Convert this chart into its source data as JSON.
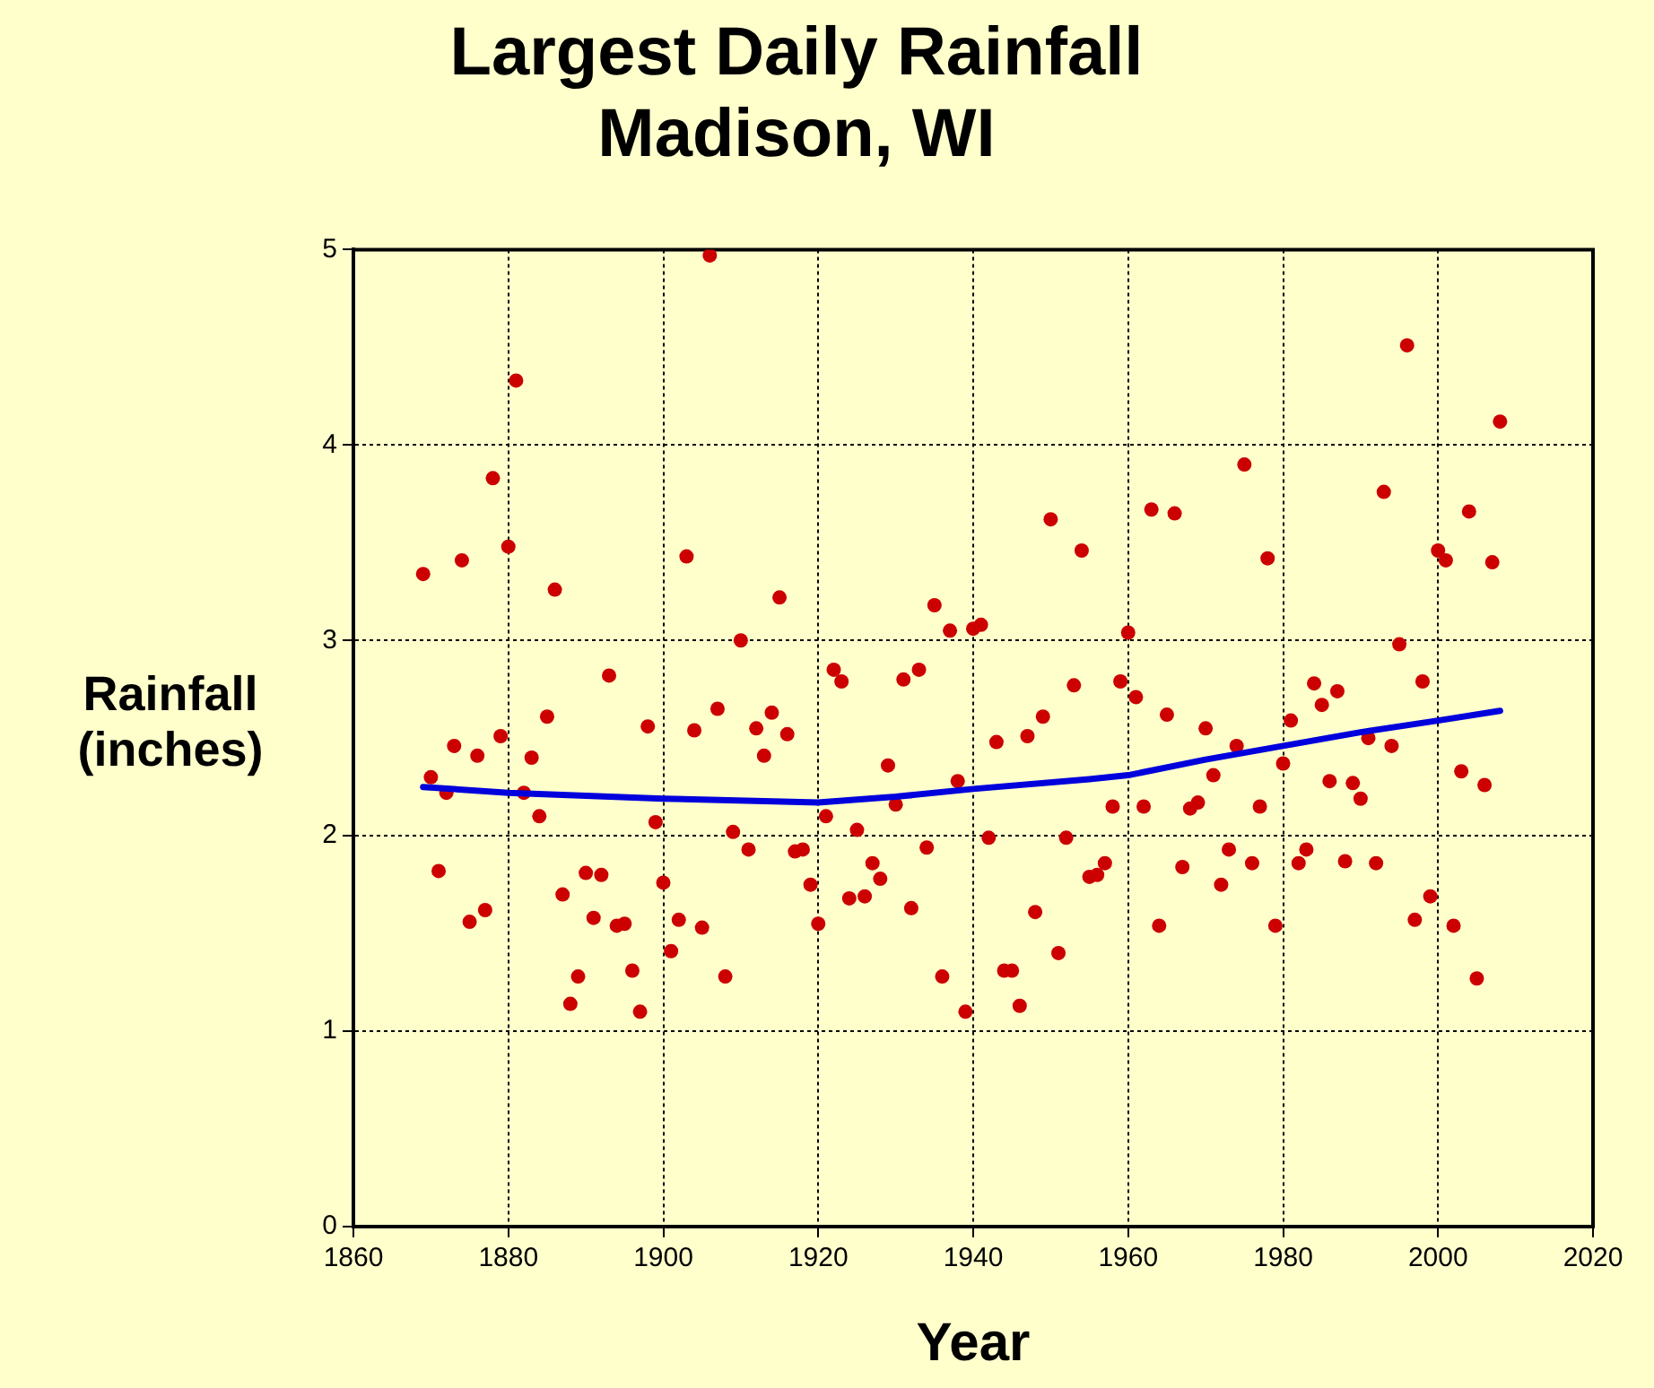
{
  "chart_data": {
    "type": "scatter",
    "title": "Largest Daily Rainfall",
    "subtitle": "Madison, WI",
    "xlabel": "Year",
    "ylabel": "Rainfall (inches)",
    "xlim": [
      1860,
      2020
    ],
    "xticks": [
      1860,
      1880,
      1900,
      1920,
      1940,
      1960,
      1980,
      2000,
      2020
    ],
    "ylim": [
      0,
      5
    ],
    "yticks": [
      0,
      1,
      2,
      3,
      4,
      5
    ],
    "grid": true,
    "legend": false,
    "marker": "circle",
    "series": [
      {
        "color": "#cc0000",
        "x": [
          1869,
          1870,
          1871,
          1872,
          1873,
          1874,
          1875,
          1876,
          1877,
          1878,
          1879,
          1880,
          1881,
          1882,
          1883,
          1884,
          1885,
          1886,
          1887,
          1888,
          1889,
          1890,
          1891,
          1892,
          1893,
          1894,
          1895,
          1896,
          1897,
          1898,
          1899,
          1900,
          1901,
          1902,
          1903,
          1904,
          1905,
          1906,
          1907,
          1908,
          1909,
          1910,
          1911,
          1912,
          1913,
          1914,
          1915,
          1916,
          1917,
          1918,
          1919,
          1920,
          1921,
          1922,
          1923,
          1924,
          1925,
          1926,
          1927,
          1928,
          1929,
          1930,
          1931,
          1932,
          1933,
          1934,
          1935,
          1936,
          1937,
          1938,
          1939,
          1940,
          1941,
          1942,
          1943,
          1944,
          1945,
          1946,
          1947,
          1948,
          1949,
          1950,
          1951,
          1952,
          1953,
          1954,
          1955,
          1956,
          1957,
          1958,
          1959,
          1960,
          1961,
          1962,
          1963,
          1964,
          1965,
          1966,
          1967,
          1968,
          1969,
          1970,
          1971,
          1972,
          1973,
          1974,
          1975,
          1976,
          1977,
          1978,
          1979,
          1980,
          1981,
          1982,
          1983,
          1984,
          1985,
          1986,
          1987,
          1988,
          1989,
          1990,
          1991,
          1992,
          1993,
          1994,
          1995,
          1996,
          1997,
          1998,
          1999,
          2000,
          2001,
          2002,
          2003,
          2004,
          2005,
          2006,
          2007,
          2008
        ],
        "values": [
          3.34,
          2.3,
          1.82,
          2.22,
          2.46,
          3.41,
          1.56,
          2.41,
          1.62,
          3.83,
          2.51,
          3.48,
          4.33,
          2.22,
          2.4,
          2.1,
          2.61,
          3.26,
          1.7,
          1.14,
          1.28,
          1.81,
          1.58,
          1.8,
          2.82,
          1.54,
          1.55,
          1.31,
          1.1,
          2.56,
          2.07,
          1.76,
          1.41,
          1.57,
          3.43,
          2.54,
          1.53,
          4.97,
          2.65,
          1.28,
          2.02,
          3.0,
          1.93,
          2.55,
          2.41,
          2.63,
          3.22,
          2.52,
          1.92,
          1.93,
          1.75,
          1.55,
          2.1,
          2.85,
          2.79,
          1.68,
          2.03,
          1.69,
          1.86,
          1.78,
          2.36,
          2.16,
          2.8,
          1.63,
          2.85,
          1.94,
          3.18,
          1.28,
          3.05,
          2.28,
          1.1,
          3.06,
          3.08,
          1.99,
          2.48,
          1.31,
          1.31,
          1.13,
          2.51,
          1.61,
          2.61,
          3.62,
          1.4,
          1.99,
          2.77,
          3.46,
          1.79,
          1.8,
          1.86,
          2.15,
          2.79,
          3.04,
          2.71,
          2.15,
          3.67,
          1.54,
          2.62,
          3.65,
          1.84,
          2.14,
          2.17,
          2.55,
          2.31,
          1.75,
          1.93,
          2.46,
          3.9,
          1.86,
          2.15,
          3.42,
          1.54,
          2.37,
          2.59,
          1.86,
          1.93,
          2.78,
          2.67,
          2.28,
          2.74,
          1.87,
          2.27,
          2.19,
          2.5,
          1.86,
          3.76,
          2.46,
          2.98,
          4.51,
          1.57,
          2.79,
          1.69,
          3.46,
          3.41,
          1.54,
          2.33,
          3.66,
          1.27,
          2.26,
          3.4,
          4.12
        ]
      },
      {
        "type": "line",
        "color": "#0000dd",
        "marker": "none",
        "x": [
          1869,
          1880,
          1900,
          1920,
          1930,
          1940,
          1955,
          1960,
          1970,
          1980,
          1990,
          2000,
          2008
        ],
        "values": [
          2.25,
          2.22,
          2.19,
          2.17,
          2.2,
          2.24,
          2.29,
          2.31,
          2.39,
          2.46,
          2.53,
          2.59,
          2.64
        ]
      }
    ]
  }
}
